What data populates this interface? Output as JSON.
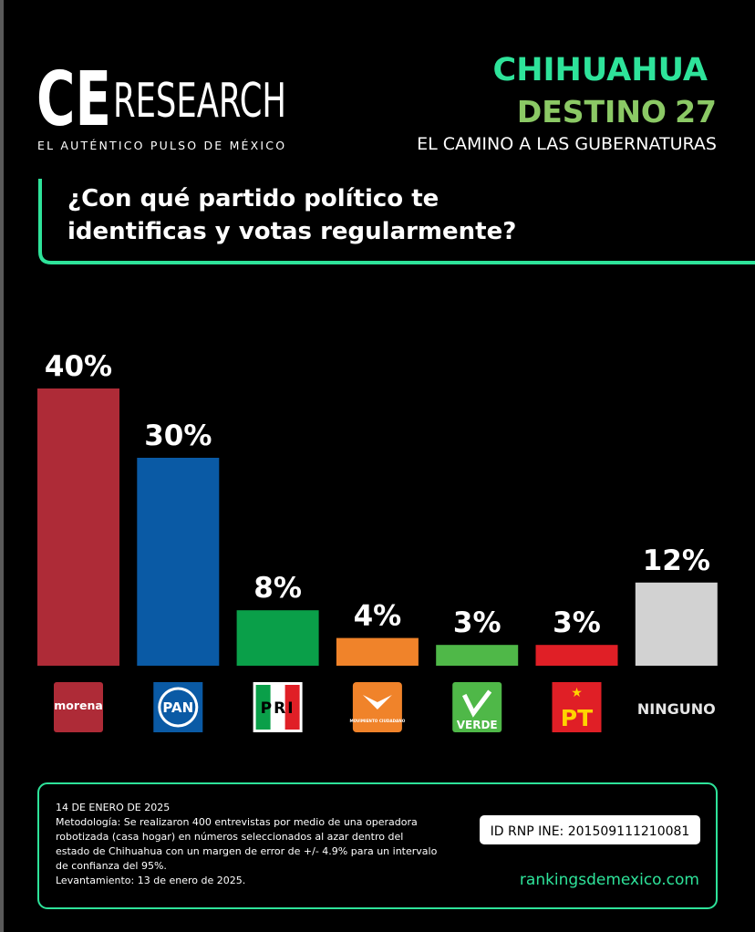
{
  "header": {
    "brand_initials": "CE",
    "brand_name": "RESEARCH",
    "tagline": "EL AUTÉNTICO PULSO DE MÉXICO",
    "state": "CHIHUAHUA",
    "series_name": "DESTINO",
    "series_year": "27",
    "subtitle": "EL CAMINO A LAS GUBERNATURAS"
  },
  "chart_data": {
    "type": "bar",
    "title": [
      "¿Con qué partido político te",
      "identificas y votas regularmente?"
    ],
    "categories": [
      "morena",
      "PAN",
      "PRI",
      "MOVIMIENTO CIUDADANO",
      "VERDE",
      "PT",
      "NINGUNO"
    ],
    "values": [
      40,
      30,
      8,
      4,
      3,
      3,
      12
    ],
    "value_labels": [
      "40%",
      "30%",
      "8%",
      "4%",
      "3%",
      "3%",
      "12%"
    ],
    "colors": [
      "#ae2b37",
      "#0a5aa5",
      "#0a9f49",
      "#f0832a",
      "#4fb848",
      "#e01f26",
      "#d2d2d2"
    ]
  },
  "footer": {
    "notes": [
      "14 DE ENERO DE 2025",
      "Metodología: Se realizaron 400 entrevistas por medio de una operadora",
      "robotizada (casa hogar) en números seleccionados al azar dentro del",
      "estado de Chihuahua con un margen de error de +/- 4.9% para un intervalo",
      "de confianza del 95%.",
      "Levantamiento: 13 de enero de 2025."
    ],
    "registry": "ID RNP INE: 201509111210081",
    "website": "rankingsdemexico.com"
  }
}
